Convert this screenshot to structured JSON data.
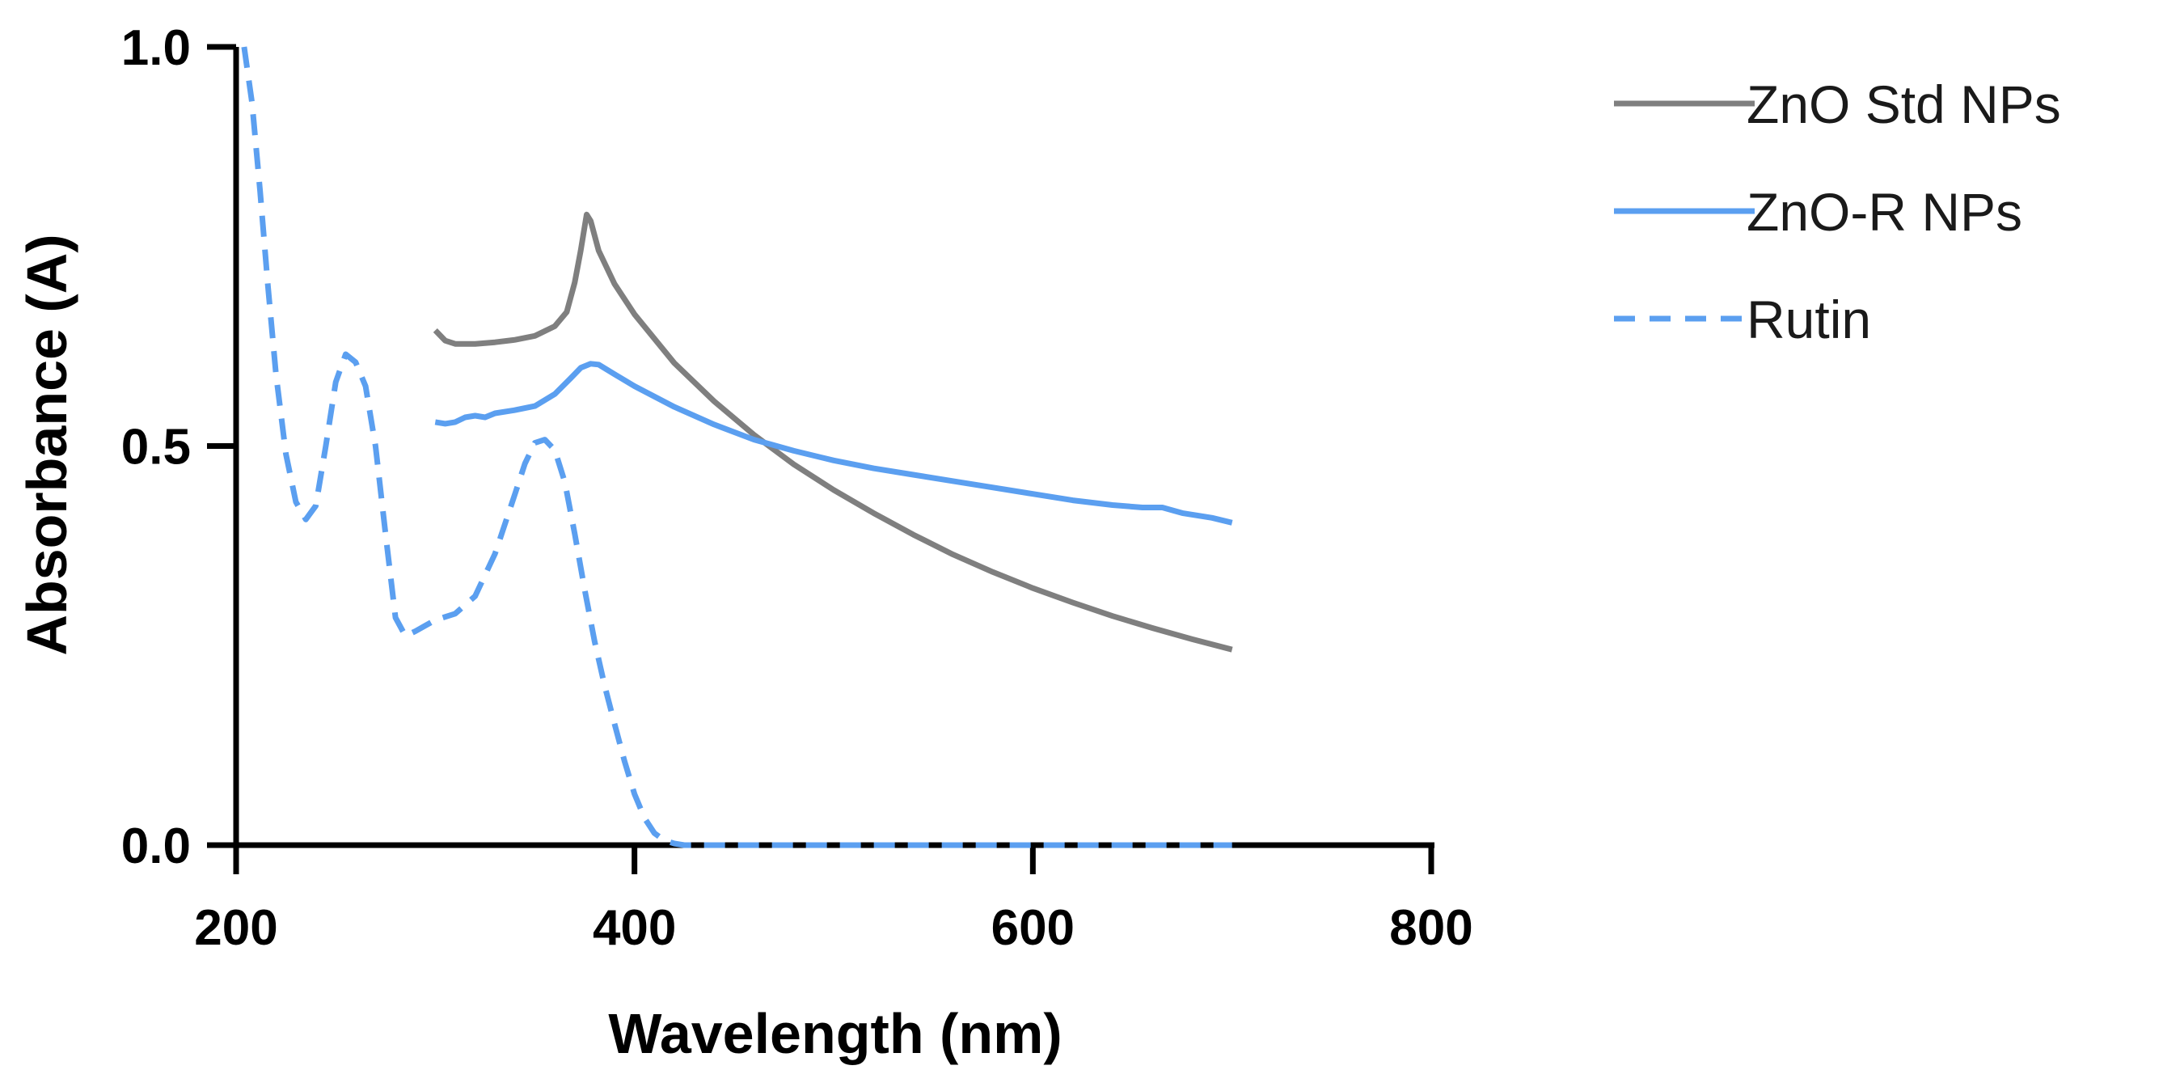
{
  "chart_data": {
    "type": "line",
    "title": "",
    "xlabel": "Wavelength (nm)",
    "ylabel": "Absorbance (A)",
    "xlim": [
      200,
      800
    ],
    "ylim": [
      0,
      1.0
    ],
    "x_ticks": [
      200,
      400,
      600,
      800
    ],
    "x_tick_labels": [
      "200",
      "400",
      "600",
      "800"
    ],
    "y_ticks": [
      0,
      0.5,
      1.0
    ],
    "y_tick_labels": [
      "0.0",
      "0.5",
      "1.0"
    ],
    "legend_position": "top-right, outside plot",
    "grid": false,
    "series": [
      {
        "name": "ZnO Std NPs",
        "color": "#7f7f7f",
        "style": "solid",
        "points": [
          [
            300,
            0.645
          ],
          [
            305,
            0.632
          ],
          [
            310,
            0.628
          ],
          [
            320,
            0.628
          ],
          [
            330,
            0.63
          ],
          [
            340,
            0.633
          ],
          [
            350,
            0.638
          ],
          [
            360,
            0.65
          ],
          [
            366,
            0.668
          ],
          [
            370,
            0.705
          ],
          [
            373,
            0.745
          ],
          [
            376,
            0.79
          ],
          [
            378,
            0.782
          ],
          [
            382,
            0.745
          ],
          [
            390,
            0.703
          ],
          [
            400,
            0.665
          ],
          [
            420,
            0.604
          ],
          [
            440,
            0.556
          ],
          [
            460,
            0.514
          ],
          [
            480,
            0.477
          ],
          [
            500,
            0.445
          ],
          [
            520,
            0.416
          ],
          [
            540,
            0.389
          ],
          [
            560,
            0.364
          ],
          [
            580,
            0.342
          ],
          [
            600,
            0.322
          ],
          [
            620,
            0.304
          ],
          [
            640,
            0.287
          ],
          [
            660,
            0.272
          ],
          [
            680,
            0.258
          ],
          [
            700,
            0.245
          ]
        ]
      },
      {
        "name": "ZnO-R NPs",
        "color": "#5b9ff0",
        "style": "solid",
        "points": [
          [
            300,
            0.53
          ],
          [
            305,
            0.528
          ],
          [
            310,
            0.53
          ],
          [
            315,
            0.536
          ],
          [
            320,
            0.538
          ],
          [
            325,
            0.536
          ],
          [
            330,
            0.541
          ],
          [
            340,
            0.545
          ],
          [
            350,
            0.55
          ],
          [
            360,
            0.565
          ],
          [
            368,
            0.585
          ],
          [
            373,
            0.598
          ],
          [
            378,
            0.603
          ],
          [
            382,
            0.602
          ],
          [
            390,
            0.59
          ],
          [
            400,
            0.575
          ],
          [
            420,
            0.549
          ],
          [
            440,
            0.527
          ],
          [
            460,
            0.508
          ],
          [
            480,
            0.494
          ],
          [
            500,
            0.482
          ],
          [
            520,
            0.472
          ],
          [
            540,
            0.464
          ],
          [
            560,
            0.456
          ],
          [
            580,
            0.448
          ],
          [
            600,
            0.44
          ],
          [
            620,
            0.432
          ],
          [
            640,
            0.426
          ],
          [
            655,
            0.423
          ],
          [
            665,
            0.423
          ],
          [
            675,
            0.416
          ],
          [
            690,
            0.41
          ],
          [
            700,
            0.404
          ]
        ]
      },
      {
        "name": "Rutin",
        "color": "#5b9ff0",
        "style": "dashed",
        "points": [
          [
            204,
            1.0
          ],
          [
            208,
            0.93
          ],
          [
            212,
            0.82
          ],
          [
            216,
            0.7
          ],
          [
            220,
            0.59
          ],
          [
            225,
            0.49
          ],
          [
            230,
            0.43
          ],
          [
            235,
            0.408
          ],
          [
            240,
            0.425
          ],
          [
            245,
            0.5
          ],
          [
            250,
            0.58
          ],
          [
            255,
            0.615
          ],
          [
            260,
            0.605
          ],
          [
            265,
            0.575
          ],
          [
            270,
            0.5
          ],
          [
            275,
            0.39
          ],
          [
            280,
            0.285
          ],
          [
            285,
            0.262
          ],
          [
            290,
            0.268
          ],
          [
            295,
            0.275
          ],
          [
            300,
            0.282
          ],
          [
            310,
            0.29
          ],
          [
            320,
            0.312
          ],
          [
            330,
            0.365
          ],
          [
            340,
            0.44
          ],
          [
            345,
            0.478
          ],
          [
            350,
            0.504
          ],
          [
            355,
            0.508
          ],
          [
            360,
            0.495
          ],
          [
            365,
            0.455
          ],
          [
            370,
            0.39
          ],
          [
            375,
            0.32
          ],
          [
            380,
            0.255
          ],
          [
            385,
            0.2
          ],
          [
            390,
            0.152
          ],
          [
            395,
            0.105
          ],
          [
            400,
            0.064
          ],
          [
            405,
            0.034
          ],
          [
            410,
            0.015
          ],
          [
            415,
            0.006
          ],
          [
            420,
            0.002
          ],
          [
            425,
            0.0
          ],
          [
            450,
            0.0
          ],
          [
            500,
            0.0
          ],
          [
            550,
            0.0
          ],
          [
            600,
            0.0
          ],
          [
            650,
            0.0
          ],
          [
            700,
            0.0
          ]
        ]
      }
    ]
  }
}
